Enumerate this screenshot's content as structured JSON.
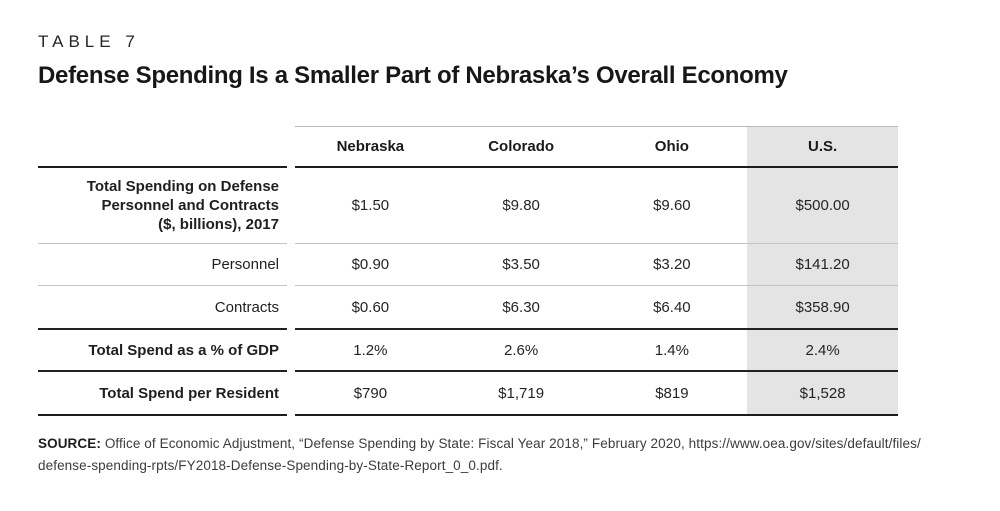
{
  "eyebrow": "TABLE 7",
  "title": "Defense Spending Is a Smaller Part of Nebraska’s Overall Economy",
  "table": {
    "columns": [
      "Nebraska",
      "Colorado",
      "Ohio",
      "U.S."
    ],
    "highlight_column": "U.S.",
    "rows": [
      {
        "label_lines": [
          "Total Spending on Defense",
          "Personnel and Contracts",
          "($, billions), 2017"
        ],
        "values": [
          "$1.50",
          "$9.80",
          "$9.60",
          "$500.00"
        ]
      },
      {
        "label_lines": [
          "Personnel"
        ],
        "values": [
          "$0.90",
          "$3.50",
          "$3.20",
          "$141.20"
        ]
      },
      {
        "label_lines": [
          "Contracts"
        ],
        "values": [
          "$0.60",
          "$6.30",
          "$6.40",
          "$358.90"
        ]
      },
      {
        "label_lines": [
          "Total Spend as a % of GDP"
        ],
        "values": [
          "1.2%",
          "2.6%",
          "1.4%",
          "2.4%"
        ]
      },
      {
        "label_lines": [
          "Total Spend per Resident"
        ],
        "values": [
          "$790",
          "$1,719",
          "$819",
          "$1,528"
        ]
      }
    ]
  },
  "source": {
    "label": "SOURCE:",
    "line1": "Office of Economic Adjustment, “Defense Spending by State: Fiscal Year 2018,” February 2020, https://www.oea.gov/sites/default/files/",
    "line2": "defense-spending-rpts/FY2018-Defense-Spending-by-State-Report_0_0.pdf."
  },
  "colors": {
    "highlight_bg": "#e4e4e4",
    "rule_thin": "#c3c3c3",
    "rule_thick": "#1d1d1d",
    "text": "#1f1f1f"
  }
}
